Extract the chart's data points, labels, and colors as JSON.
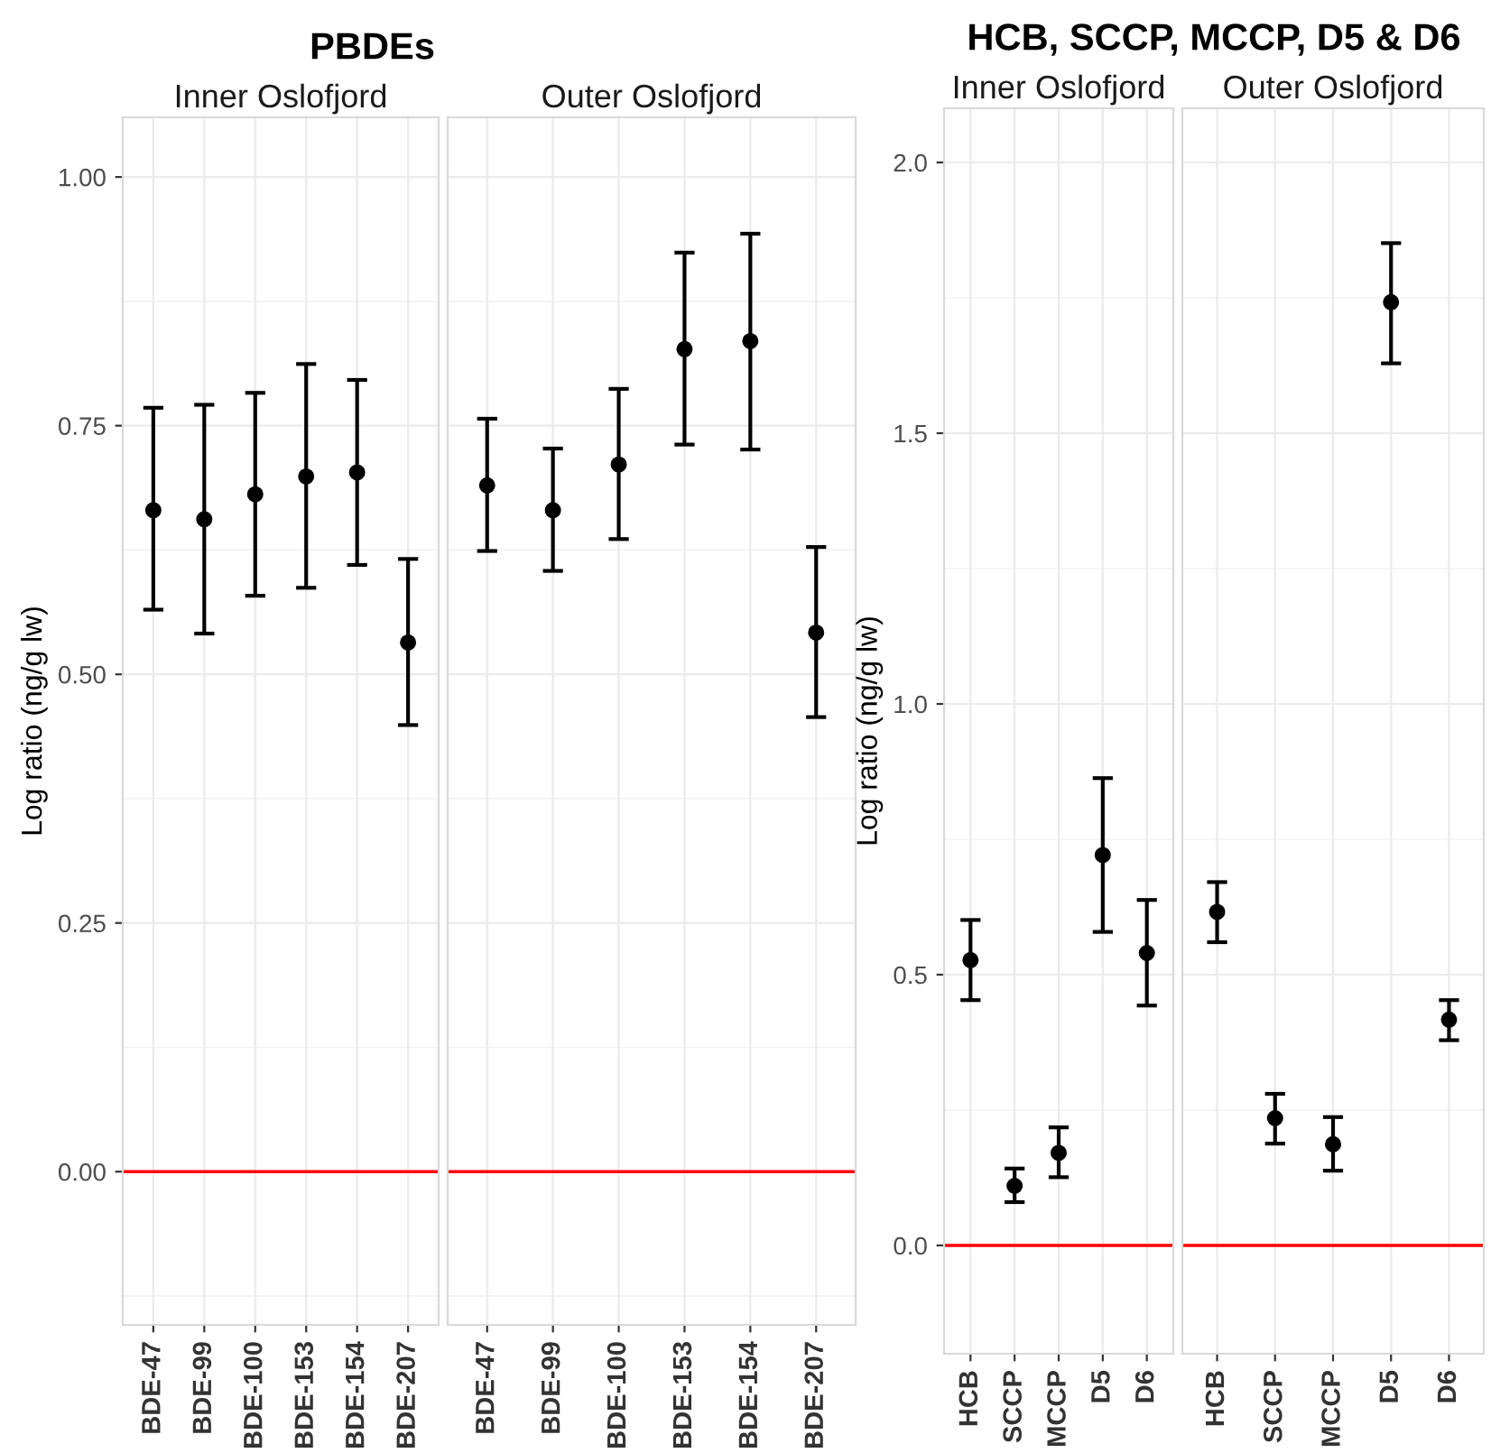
{
  "chart_data": [
    {
      "type": "scatter",
      "title": "PBDEs",
      "subtitle": "Inner Oslofjord",
      "ylabel": "Log ratio (ng/g lw)",
      "categories": [
        "BDE-47",
        "BDE-99",
        "BDE-100",
        "BDE-153",
        "BDE-154",
        "BDE-207"
      ],
      "values": [
        0.665,
        0.656,
        0.681,
        0.699,
        0.703,
        0.532
      ],
      "errors": [
        [
          0.565,
          0.768
        ],
        [
          0.541,
          0.771
        ],
        [
          0.579,
          0.783
        ],
        [
          0.587,
          0.812
        ],
        [
          0.61,
          0.796
        ],
        [
          0.449,
          0.616
        ]
      ],
      "color": "#000000",
      "marker": "circle",
      "ylim": [
        -0.154,
        1.06
      ],
      "yticks": [
        {
          "value": 0,
          "label": "0.00"
        },
        0.25,
        {
          "value": 0.5,
          "label": "0.50"
        },
        0.75,
        {
          "value": 1,
          "label": "1.00"
        }
      ],
      "grid": true,
      "ref_lines": [
        {
          "axis": "y",
          "value": 0,
          "color": "#ff0000"
        }
      ]
    },
    {
      "type": "scatter",
      "subtitle": "Outer Oslofjord",
      "categories": [
        "BDE-47",
        "BDE-99",
        "BDE-100",
        "BDE-153",
        "BDE-154",
        "BDE-207"
      ],
      "values": [
        0.69,
        0.665,
        0.711,
        0.827,
        0.835,
        0.542
      ],
      "errors": [
        [
          0.624,
          0.757
        ],
        [
          0.604,
          0.727
        ],
        [
          0.636,
          0.787
        ],
        [
          0.731,
          0.924
        ],
        [
          0.726,
          0.943
        ],
        [
          0.457,
          0.628
        ]
      ],
      "color": "#000000",
      "marker": "circle",
      "ylim": [
        -0.154,
        1.06
      ],
      "yticks": [
        0,
        0.25,
        0.5,
        0.75,
        1
      ],
      "grid": true,
      "tick_labels": "x",
      "ref_lines": [
        {
          "axis": "y",
          "value": 0,
          "color": "#ff0000"
        }
      ]
    },
    {
      "type": "scatter",
      "title": "HCB, SCCP, MCCP, D5 & D6",
      "subtitle": "Inner Oslofjord",
      "ylabel": "Log ratio (ng/g lw)",
      "categories": [
        "HCB",
        "SCCP",
        "MCCP",
        "D5",
        "D6"
      ],
      "values": [
        0.527,
        0.11,
        0.171,
        0.721,
        0.54
      ],
      "errors": [
        [
          0.453,
          0.601
        ],
        [
          0.08,
          0.142
        ],
        [
          0.126,
          0.218
        ],
        [
          0.579,
          0.863
        ],
        [
          0.443,
          0.638
        ]
      ],
      "color": "#000000",
      "marker": "circle",
      "ylim": [
        -0.2,
        2.1
      ],
      "yticks": [
        {
          "value": 0,
          "label": "0.0"
        },
        {
          "value": 0.5,
          "label": "0.5"
        },
        {
          "value": 1,
          "label": "1.0"
        },
        {
          "value": 1.5,
          "label": "1.5"
        },
        {
          "value": 2,
          "label": "2.0"
        }
      ],
      "grid": true,
      "ref_lines": [
        {
          "axis": "y",
          "value": 0,
          "color": "#ff0000"
        }
      ]
    },
    {
      "type": "scatter",
      "subtitle": "Outer Oslofjord",
      "categories": [
        "HCB",
        "SCCP",
        "MCCP",
        "D5",
        "D6"
      ],
      "values": [
        0.616,
        0.235,
        0.187,
        1.742,
        0.417
      ],
      "errors": [
        [
          0.56,
          0.671
        ],
        [
          0.188,
          0.28
        ],
        [
          0.138,
          0.237
        ],
        [
          1.629,
          1.851
        ],
        [
          0.379,
          0.453
        ]
      ],
      "color": "#000000",
      "marker": "circle",
      "ylim": [
        -0.2,
        2.1
      ],
      "yticks": [
        0,
        0.5,
        1,
        1.5,
        2
      ],
      "grid": true,
      "tick_labels": "x",
      "ref_lines": [
        {
          "axis": "y",
          "value": 0,
          "color": "#ff0000"
        }
      ]
    }
  ]
}
